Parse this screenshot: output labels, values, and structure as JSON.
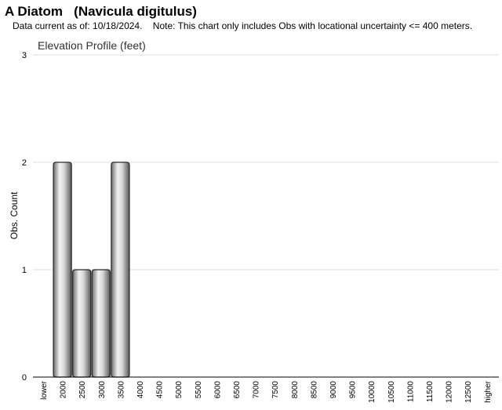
{
  "header": {
    "title": "A Diatom   (Navicula digitulus)",
    "subtitle": "Data current as of: 10/18/2024.    Note: This chart only includes Obs with locational uncertainty <= 400 meters."
  },
  "chart_data": {
    "type": "bar",
    "title": "Elevation Profile (feet)",
    "xlabel": "",
    "ylabel": "Obs. Count",
    "ylim": [
      0,
      3
    ],
    "yticks": [
      0,
      1,
      2,
      3
    ],
    "grid": true,
    "categories": [
      "lower",
      "2000",
      "2500",
      "3000",
      "3500",
      "4000",
      "4500",
      "5000",
      "5500",
      "6000",
      "6500",
      "7000",
      "7500",
      "8000",
      "8500",
      "9000",
      "9500",
      "10000",
      "10500",
      "11000",
      "11500",
      "12000",
      "12500",
      "higher"
    ],
    "values": [
      0,
      2,
      1,
      1,
      2,
      0,
      0,
      0,
      0,
      0,
      0,
      0,
      0,
      0,
      0,
      0,
      0,
      0,
      0,
      0,
      0,
      0,
      0,
      0
    ],
    "bar_color": "#a8a8a8",
    "bar_edge_color": "#2a2a2a"
  }
}
